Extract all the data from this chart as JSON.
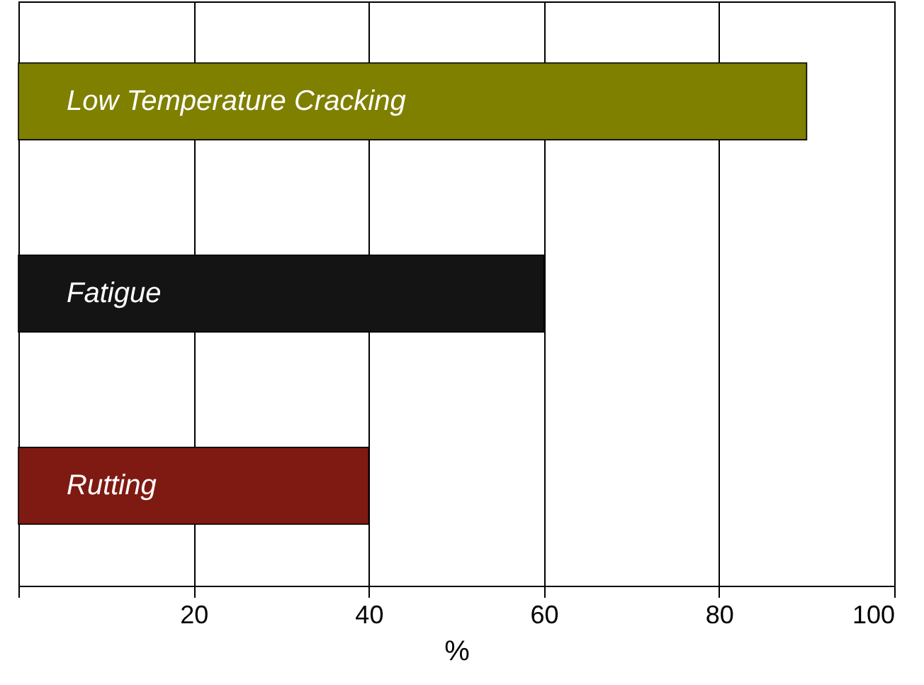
{
  "chart_data": {
    "type": "bar",
    "orientation": "horizontal",
    "xlabel": "%",
    "categories": [
      "Low Temperature Cracking",
      "Fatigue",
      "Rutting"
    ],
    "values": [
      90,
      60,
      40
    ],
    "colors": [
      "#7f7f00",
      "#141414",
      "#7e1a12"
    ],
    "xlim": [
      0,
      100
    ],
    "xticks": [
      {
        "value": 0,
        "label": null
      },
      20,
      40,
      60,
      80,
      100
    ],
    "grid": "x",
    "tick_labels": "x"
  }
}
